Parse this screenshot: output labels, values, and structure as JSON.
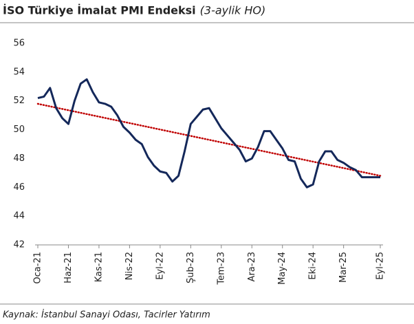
{
  "chart_data": {
    "type": "line",
    "title": "İSO Türkiye İmalat PMI Endeksi",
    "subtitle": "(3-aylik HO)",
    "source": "Kaynak: İstanbul Sanayi Odası, Tacirler Yatırım",
    "categories": [
      "Oca-21",
      null,
      null,
      null,
      null,
      "Haz-21",
      null,
      null,
      null,
      null,
      "Kas-21",
      null,
      null,
      null,
      null,
      "Nis-22",
      null,
      null,
      null,
      null,
      "Eyl-22",
      null,
      null,
      null,
      null,
      "Şub-23",
      null,
      null,
      null,
      null,
      "Tem-23",
      null,
      null,
      null,
      null,
      "Ara-23",
      null,
      null,
      null,
      null,
      "May-24",
      null,
      null,
      null,
      null,
      "Eki-24",
      null,
      null,
      null,
      null,
      "Mar-25",
      null,
      null,
      null,
      null,
      null,
      "Eyl-25"
    ],
    "series": [
      {
        "color": "#14285a",
        "values": [
          52.2,
          52.3,
          52.9,
          51.5,
          50.8,
          50.4,
          52.0,
          53.2,
          53.5,
          52.6,
          51.9,
          51.8,
          51.6,
          51.0,
          50.2,
          49.8,
          49.3,
          49.0,
          48.1,
          47.5,
          47.1,
          47.0,
          46.4,
          46.8,
          48.5,
          50.4,
          50.9,
          51.4,
          51.5,
          50.8,
          50.1,
          49.6,
          49.1,
          48.6,
          47.8,
          48.0,
          48.8,
          49.9,
          49.9,
          49.3,
          48.7,
          47.9,
          47.8,
          46.6,
          46.0,
          46.2,
          47.8,
          48.5,
          48.5,
          47.9,
          47.7,
          47.4,
          47.2,
          46.7,
          46.7,
          46.7,
          46.7
        ]
      }
    ],
    "trend": {
      "color": "#c00000",
      "values": [
        51.8,
        46.8
      ]
    },
    "ylim": [
      42,
      56
    ],
    "yticks": [
      42,
      44,
      46,
      48,
      50,
      52,
      54,
      56
    ],
    "grid": false
  }
}
